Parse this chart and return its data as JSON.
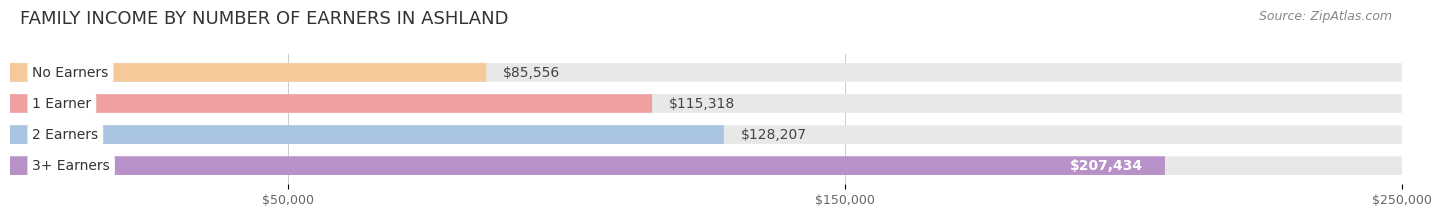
{
  "title": "FAMILY INCOME BY NUMBER OF EARNERS IN ASHLAND",
  "source": "Source: ZipAtlas.com",
  "categories": [
    "No Earners",
    "1 Earner",
    "2 Earners",
    "3+ Earners"
  ],
  "values": [
    85556,
    115318,
    128207,
    207434
  ],
  "bar_colors": [
    "#f5c99a",
    "#f0a0a0",
    "#a8c4e0",
    "#b891c8"
  ],
  "bar_bg_color": "#e8e8e8",
  "label_colors": [
    "#444444",
    "#444444",
    "#444444",
    "#ffffff"
  ],
  "max_value": 250000,
  "x_ticks": [
    50000,
    150000,
    250000
  ],
  "x_tick_labels": [
    "$50,000",
    "$150,000",
    "$250,000"
  ],
  "value_labels": [
    "$85,556",
    "$115,318",
    "$128,207",
    "$207,434"
  ],
  "background_color": "#ffffff",
  "title_fontsize": 13,
  "source_fontsize": 9,
  "label_fontsize": 10,
  "tick_fontsize": 9,
  "cat_label_fontsize": 10
}
